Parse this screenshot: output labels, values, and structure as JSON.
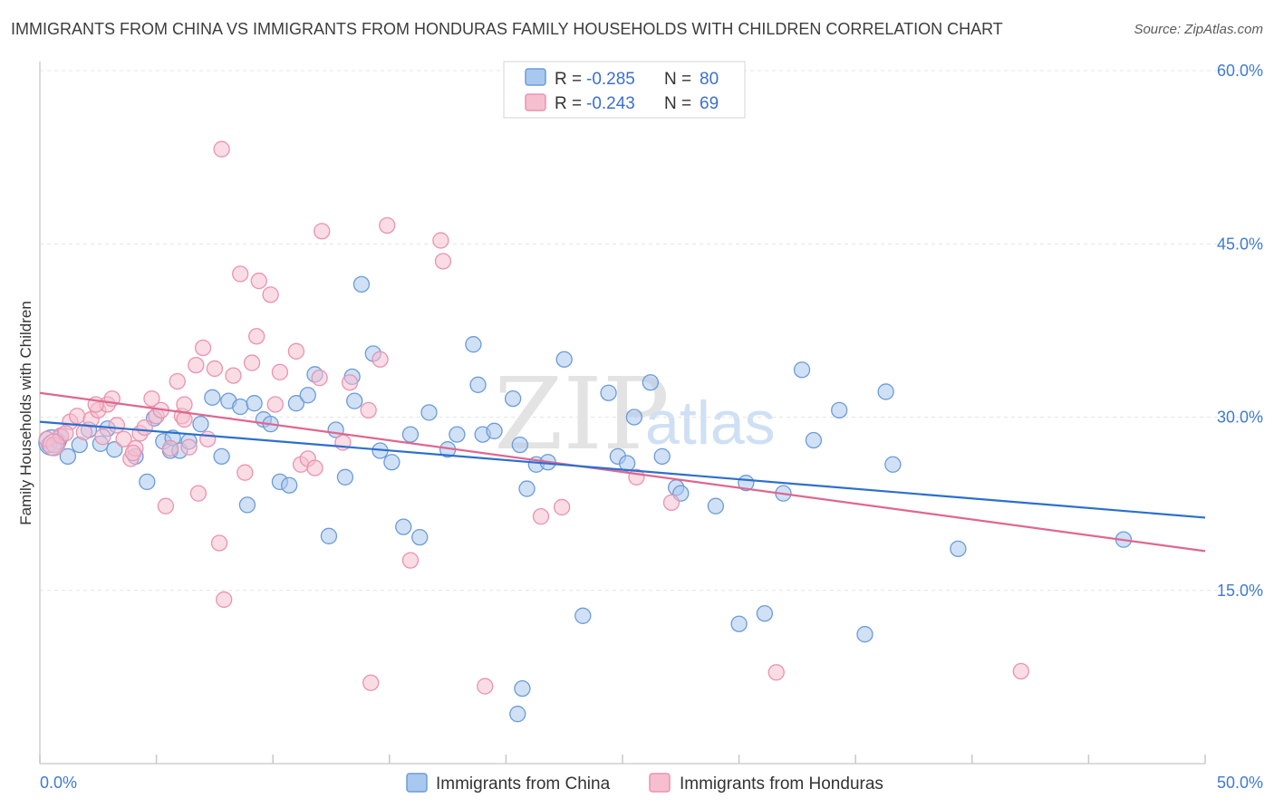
{
  "title": "IMMIGRANTS FROM CHINA VS IMMIGRANTS FROM HONDURAS FAMILY HOUSEHOLDS WITH CHILDREN CORRELATION CHART",
  "source": "Source: ZipAtlas.com",
  "watermark": {
    "zip": "ZIP",
    "atlas": "atlas"
  },
  "legend": {
    "r_label": "R =",
    "n_label": "N =",
    "rows": [
      {
        "r": "-0.285",
        "n": "80"
      },
      {
        "r": "-0.243",
        "n": "69"
      }
    ]
  },
  "colors": {
    "china_fill": "#a9c8ef",
    "china_stroke": "#6c9bd8",
    "china_line": "#2c6fcf",
    "honduras_fill": "#f6bfd0",
    "honduras_stroke": "#e993b0",
    "honduras_line": "#e0668f"
  },
  "chart_data": {
    "type": "scatter",
    "title": "IMMIGRANTS FROM CHINA VS IMMIGRANTS FROM HONDURAS FAMILY HOUSEHOLDS WITH CHILDREN CORRELATION CHART",
    "xlabel": "",
    "ylabel": "Family Households with Children",
    "xlim": [
      0,
      50
    ],
    "ylim": [
      0,
      60
    ],
    "x_tick_labels": [
      "0.0%",
      "50.0%"
    ],
    "y_ticks": [
      15,
      30,
      45,
      60
    ],
    "y_tick_labels": [
      "15.0%",
      "30.0%",
      "45.0%",
      "60.0%"
    ],
    "series": [
      {
        "name": "Immigrants from China",
        "r": -0.285,
        "n": 80,
        "trend": {
          "x": [
            0,
            50
          ],
          "y": [
            29.6,
            21.3
          ]
        },
        "points": [
          [
            0.4,
            27.6
          ],
          [
            0.8,
            27.9
          ],
          [
            0.9,
            28.3
          ],
          [
            1.2,
            26.6
          ],
          [
            1.7,
            27.6
          ],
          [
            2.1,
            28.9
          ],
          [
            2.6,
            27.7
          ],
          [
            2.9,
            29.0
          ],
          [
            3.2,
            27.2
          ],
          [
            4.1,
            26.6
          ],
          [
            4.6,
            24.4
          ],
          [
            4.9,
            29.9
          ],
          [
            5.3,
            27.9
          ],
          [
            5.6,
            27.1
          ],
          [
            5.7,
            28.2
          ],
          [
            6.0,
            27.1
          ],
          [
            6.4,
            27.9
          ],
          [
            6.9,
            29.4
          ],
          [
            7.4,
            31.7
          ],
          [
            7.8,
            26.6
          ],
          [
            8.1,
            31.4
          ],
          [
            8.6,
            30.9
          ],
          [
            8.9,
            22.4
          ],
          [
            9.2,
            31.2
          ],
          [
            9.6,
            29.8
          ],
          [
            9.9,
            29.4
          ],
          [
            10.3,
            24.4
          ],
          [
            10.7,
            24.1
          ],
          [
            11.0,
            31.2
          ],
          [
            11.5,
            31.9
          ],
          [
            11.8,
            33.7
          ],
          [
            12.4,
            19.7
          ],
          [
            12.7,
            28.9
          ],
          [
            13.1,
            24.8
          ],
          [
            13.4,
            33.5
          ],
          [
            13.5,
            31.4
          ],
          [
            13.8,
            41.5
          ],
          [
            14.3,
            35.5
          ],
          [
            14.6,
            27.1
          ],
          [
            15.1,
            26.1
          ],
          [
            15.6,
            20.5
          ],
          [
            15.9,
            28.5
          ],
          [
            16.3,
            19.6
          ],
          [
            16.7,
            30.4
          ],
          [
            17.5,
            27.2
          ],
          [
            17.9,
            28.5
          ],
          [
            18.6,
            36.3
          ],
          [
            18.8,
            32.8
          ],
          [
            19.0,
            28.5
          ],
          [
            19.5,
            28.8
          ],
          [
            20.3,
            31.6
          ],
          [
            20.6,
            27.6
          ],
          [
            20.9,
            23.8
          ],
          [
            21.3,
            25.9
          ],
          [
            21.8,
            26.1
          ],
          [
            22.5,
            35.0
          ],
          [
            23.3,
            12.8
          ],
          [
            24.4,
            32.1
          ],
          [
            24.8,
            26.6
          ],
          [
            25.2,
            26.0
          ],
          [
            25.5,
            30.0
          ],
          [
            26.2,
            33.0
          ],
          [
            26.7,
            26.6
          ],
          [
            27.3,
            23.9
          ],
          [
            27.5,
            23.4
          ],
          [
            29.0,
            22.3
          ],
          [
            30.0,
            12.1
          ],
          [
            30.3,
            24.3
          ],
          [
            31.1,
            13.0
          ],
          [
            31.9,
            23.4
          ],
          [
            32.7,
            34.1
          ],
          [
            33.2,
            28.0
          ],
          [
            34.3,
            30.6
          ],
          [
            35.4,
            11.2
          ],
          [
            36.3,
            32.2
          ],
          [
            36.6,
            25.9
          ],
          [
            39.4,
            18.6
          ],
          [
            46.5,
            19.4
          ],
          [
            20.7,
            6.5
          ],
          [
            20.5,
            4.3
          ]
        ]
      },
      {
        "name": "Immigrants from Honduras",
        "r": -0.243,
        "n": 69,
        "trend": {
          "x": [
            0,
            50
          ],
          "y": [
            32.1,
            18.4
          ]
        },
        "points": [
          [
            0.3,
            28.1
          ],
          [
            0.6,
            27.6
          ],
          [
            0.9,
            28.4
          ],
          [
            1.3,
            29.6
          ],
          [
            1.6,
            30.1
          ],
          [
            1.9,
            28.7
          ],
          [
            2.2,
            29.8
          ],
          [
            2.5,
            30.6
          ],
          [
            2.7,
            28.3
          ],
          [
            2.9,
            31.1
          ],
          [
            3.1,
            31.6
          ],
          [
            3.3,
            29.3
          ],
          [
            3.6,
            28.1
          ],
          [
            3.9,
            26.4
          ],
          [
            4.1,
            27.3
          ],
          [
            4.3,
            28.6
          ],
          [
            4.5,
            29.1
          ],
          [
            4.8,
            31.6
          ],
          [
            5.0,
            30.1
          ],
          [
            5.2,
            30.6
          ],
          [
            5.4,
            22.3
          ],
          [
            5.6,
            27.3
          ],
          [
            5.9,
            33.1
          ],
          [
            6.1,
            30.1
          ],
          [
            6.2,
            29.8
          ],
          [
            6.4,
            27.4
          ],
          [
            6.7,
            34.5
          ],
          [
            6.8,
            23.4
          ],
          [
            7.0,
            36.0
          ],
          [
            7.2,
            28.1
          ],
          [
            7.5,
            34.2
          ],
          [
            7.7,
            19.1
          ],
          [
            7.9,
            14.2
          ],
          [
            7.8,
            53.2
          ],
          [
            8.3,
            33.6
          ],
          [
            8.6,
            42.4
          ],
          [
            8.8,
            25.2
          ],
          [
            9.1,
            34.7
          ],
          [
            9.3,
            37.0
          ],
          [
            9.4,
            41.8
          ],
          [
            9.9,
            40.6
          ],
          [
            10.1,
            31.1
          ],
          [
            10.3,
            33.9
          ],
          [
            11.0,
            35.7
          ],
          [
            11.2,
            25.9
          ],
          [
            11.5,
            26.4
          ],
          [
            11.8,
            25.6
          ],
          [
            12.0,
            33.4
          ],
          [
            12.1,
            46.1
          ],
          [
            13.0,
            27.8
          ],
          [
            13.3,
            33.0
          ],
          [
            14.1,
            30.6
          ],
          [
            14.6,
            35.0
          ],
          [
            14.9,
            46.6
          ],
          [
            15.9,
            17.6
          ],
          [
            17.2,
            45.3
          ],
          [
            17.3,
            43.5
          ],
          [
            19.1,
            6.7
          ],
          [
            21.5,
            21.4
          ],
          [
            22.4,
            22.2
          ],
          [
            25.6,
            24.8
          ],
          [
            27.1,
            22.6
          ],
          [
            31.6,
            7.9
          ],
          [
            42.1,
            8.0
          ],
          [
            14.2,
            7.0
          ],
          [
            6.2,
            31.1
          ],
          [
            1.1,
            28.6
          ],
          [
            2.4,
            31.1
          ],
          [
            4.0,
            26.9
          ]
        ]
      }
    ],
    "legend_position": "top-center"
  },
  "bottom_legend": [
    "Immigrants from China",
    "Immigrants from Honduras"
  ]
}
